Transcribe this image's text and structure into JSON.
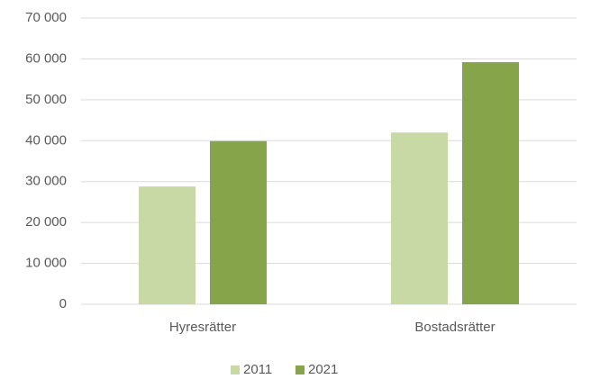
{
  "chart_data": {
    "type": "bar",
    "categories": [
      "Hyresrätter",
      "Bostadsrätter"
    ],
    "series": [
      {
        "name": "2011",
        "color": "#c9d9a5",
        "values": [
          28800,
          42000
        ]
      },
      {
        "name": "2021",
        "color": "#86a44a",
        "values": [
          39900,
          59200
        ]
      }
    ],
    "ylim": [
      0,
      70000
    ],
    "yticks": [
      0,
      {
        "value": 10000,
        "label": "10 000"
      },
      {
        "value": 20000,
        "label": "20 000"
      },
      {
        "value": 30000,
        "label": "30 000"
      },
      {
        "value": 40000,
        "label": "40 000"
      },
      {
        "value": 50000,
        "label": "50 000"
      },
      {
        "value": 60000,
        "label": "60 000"
      },
      {
        "value": 70000,
        "label": "70 000"
      }
    ],
    "grid": true,
    "legend": "bottom"
  }
}
